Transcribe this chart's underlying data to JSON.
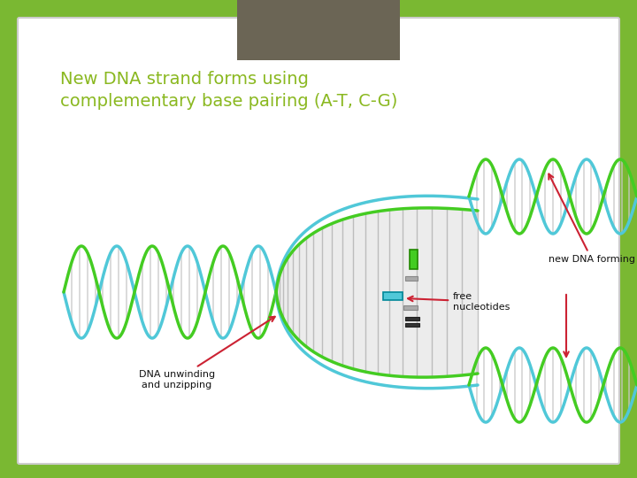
{
  "bg_outer_color": "#7ab832",
  "bg_slide_color": "#ffffff",
  "header_rect_color": "#6b6555",
  "title_text": "New DNA strand forms using\ncomplementary base pairing (A-T, C-G)",
  "title_color": "#8ab820",
  "title_fontsize": 14,
  "cyan_color": "#50c8d8",
  "green_color": "#44cc22",
  "gray_rung_color": "#c8c8c8",
  "arrow_color": "#cc2233",
  "label_color": "#111111",
  "label_fontsize": 8,
  "label_new_dna": "new DNA forming",
  "label_free_nuc": "free\nnucleotides",
  "label_unwinding": "DNA unwinding\nand unzipping"
}
